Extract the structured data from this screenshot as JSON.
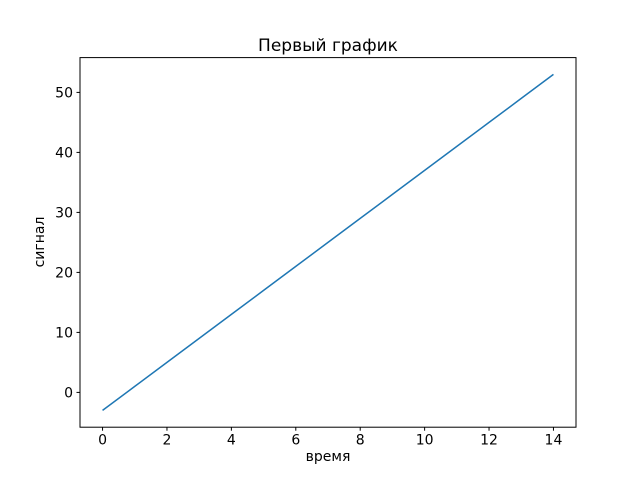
{
  "colors": {
    "background": "#ffffff",
    "line": "#1f77b4",
    "spine": "#000000",
    "text": "#000000"
  },
  "chart_data": {
    "type": "line",
    "title": "Первый график",
    "xlabel": "время",
    "ylabel": "сигнал",
    "x": [
      0,
      1,
      2,
      3,
      4,
      5,
      6,
      7,
      8,
      9,
      10,
      11,
      12,
      13,
      14
    ],
    "series": [
      {
        "color": "#1f77b4",
        "values": [
          -3,
          1,
          5,
          9,
          13,
          17,
          21,
          25,
          29,
          33,
          37,
          41,
          45,
          49,
          53
        ]
      }
    ],
    "x_ticks": [
      0,
      2,
      4,
      6,
      8,
      10,
      12,
      14
    ],
    "y_ticks": [
      0,
      10,
      20,
      30,
      40,
      50
    ],
    "xlim": [
      -0.7,
      14.7
    ],
    "ylim": [
      -5.8,
      55.8
    ],
    "grid": false,
    "legend": null
  }
}
